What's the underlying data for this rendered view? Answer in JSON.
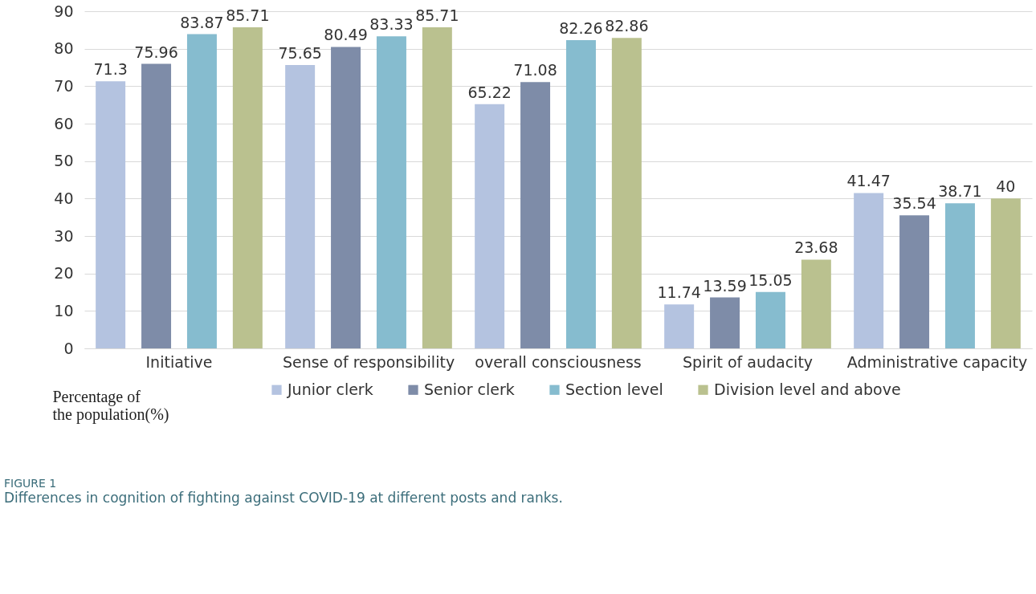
{
  "chart_data": {
    "type": "bar",
    "categories": [
      "Initiative",
      "Sense of responsibility",
      "overall consciousness",
      "Spirit of audacity",
      "Administrative capacity"
    ],
    "series": [
      {
        "name": "Junior clerk",
        "color": "#b4c3e0",
        "values": [
          71.3,
          75.65,
          65.22,
          11.74,
          41.47
        ]
      },
      {
        "name": "Senior clerk",
        "color": "#7e8ca8",
        "values": [
          75.96,
          80.49,
          71.08,
          13.59,
          35.54
        ]
      },
      {
        "name": "Section level",
        "color": "#86bccf",
        "values": [
          83.87,
          83.33,
          82.26,
          15.05,
          38.71
        ]
      },
      {
        "name": "Division level and above",
        "color": "#bac18f",
        "values": [
          85.71,
          85.71,
          82.86,
          23.68,
          40
        ]
      }
    ],
    "ylabel": "Percentage of the population(%)",
    "ylim": [
      0,
      90
    ],
    "yticks": [
      0,
      10,
      20,
      30,
      40,
      50,
      60,
      70,
      80,
      90
    ],
    "grid": "y",
    "legend": "bottom",
    "data_labels": true,
    "annotations": [
      "FIGURE 1",
      "Differences in cognition of fighting against COVID-19 at different posts and ranks."
    ]
  }
}
